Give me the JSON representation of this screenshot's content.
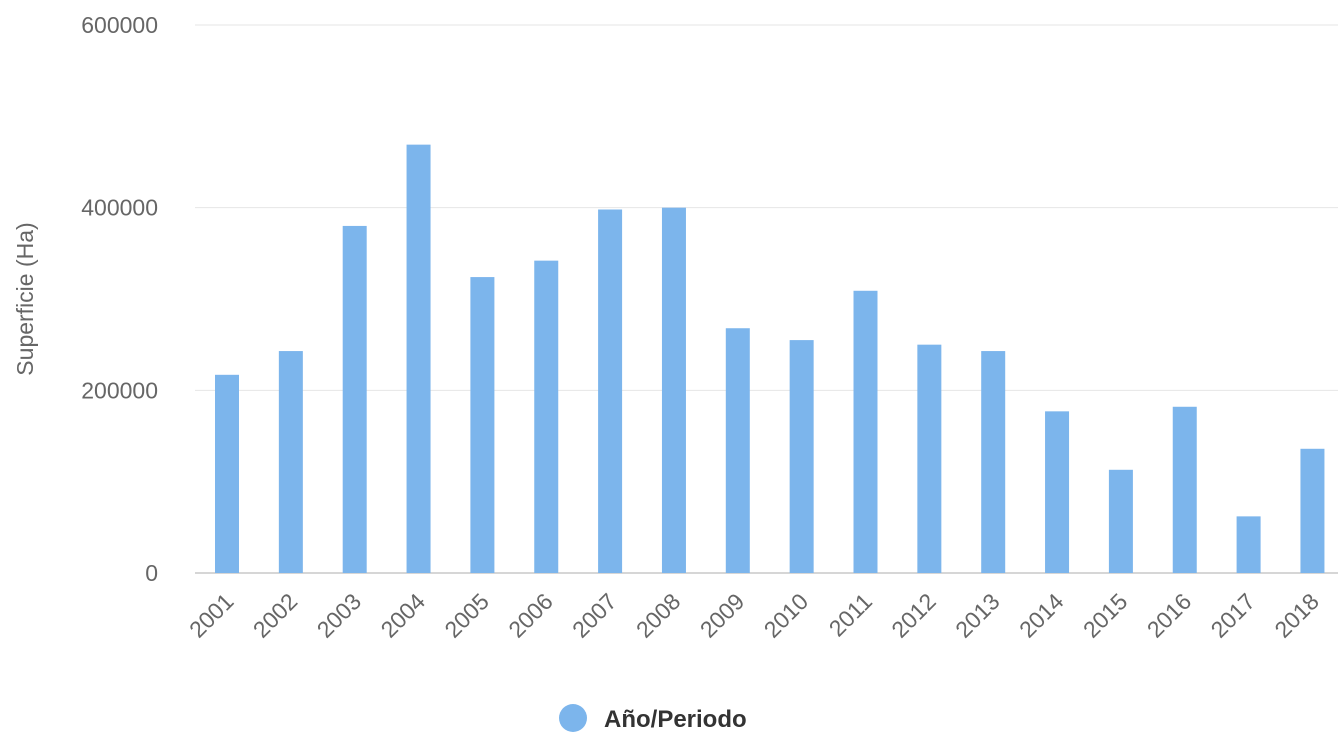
{
  "chart_data": {
    "type": "bar",
    "title": "",
    "xlabel": "",
    "ylabel": "Superficie (Ha)",
    "ylim": [
      0,
      600000
    ],
    "yticks": [
      0,
      200000,
      400000,
      600000
    ],
    "grid": true,
    "legend_position": "bottom-center",
    "categories": [
      "2001",
      "2002",
      "2003",
      "2004",
      "2005",
      "2006",
      "2007",
      "2008",
      "2009",
      "2010",
      "2011",
      "2012",
      "2013",
      "2014",
      "2015",
      "2016",
      "2017",
      "2018"
    ],
    "series": [
      {
        "name": "Año/Periodo",
        "color": "#7cb5ec",
        "values": [
          217000,
          243000,
          380000,
          469000,
          324000,
          342000,
          398000,
          400000,
          268000,
          255000,
          309000,
          250000,
          243000,
          177000,
          113000,
          182000,
          62000,
          136000
        ]
      }
    ]
  }
}
